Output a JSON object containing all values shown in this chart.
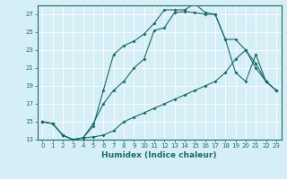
{
  "xlabel": "Humidex (Indice chaleur)",
  "bg_color": "#d6eef5",
  "grid_color": "#ffffff",
  "line_color": "#1a6b6b",
  "xlim": [
    -0.5,
    23.5
  ],
  "ylim": [
    13,
    28
  ],
  "xticks": [
    0,
    1,
    2,
    3,
    4,
    5,
    6,
    7,
    8,
    9,
    10,
    11,
    12,
    13,
    14,
    15,
    16,
    17,
    18,
    19,
    20,
    21,
    22,
    23
  ],
  "yticks": [
    13,
    15,
    17,
    19,
    21,
    23,
    25,
    27
  ],
  "line1_x": [
    0,
    1,
    2,
    3,
    4,
    5,
    6,
    7,
    8,
    9,
    10,
    11,
    12,
    13,
    14,
    15,
    16,
    17,
    18,
    19,
    20,
    21,
    22,
    23
  ],
  "line1_y": [
    15,
    14.8,
    13.5,
    13.0,
    13.2,
    14.8,
    17.0,
    18.5,
    19.5,
    21.0,
    22.0,
    25.2,
    25.5,
    27.2,
    27.3,
    27.2,
    27.0,
    27.0,
    24.2,
    24.2,
    23.0,
    21.0,
    19.5,
    18.5
  ],
  "line2_x": [
    0,
    1,
    2,
    3,
    4,
    5,
    6,
    7,
    8,
    9,
    10,
    11,
    12,
    13,
    14,
    15,
    16,
    17,
    18,
    19,
    20,
    21,
    22,
    23
  ],
  "line2_y": [
    15,
    14.8,
    13.5,
    13.0,
    13.2,
    14.5,
    18.5,
    22.5,
    23.5,
    24.0,
    24.8,
    26.0,
    27.5,
    27.5,
    27.5,
    28.2,
    27.2,
    27.0,
    24.2,
    20.5,
    19.5,
    22.5,
    19.5,
    18.5
  ],
  "line3_x": [
    0,
    1,
    2,
    3,
    4,
    5,
    6,
    7,
    8,
    9,
    10,
    11,
    12,
    13,
    14,
    15,
    16,
    17,
    18,
    19,
    20,
    21,
    22,
    23
  ],
  "line3_y": [
    15,
    14.8,
    13.5,
    13.0,
    13.2,
    13.3,
    13.5,
    14.0,
    15.0,
    15.5,
    16.0,
    16.5,
    17.0,
    17.5,
    18.0,
    18.5,
    19.0,
    19.5,
    20.5,
    22.0,
    23.0,
    21.5,
    19.5,
    18.5
  ]
}
